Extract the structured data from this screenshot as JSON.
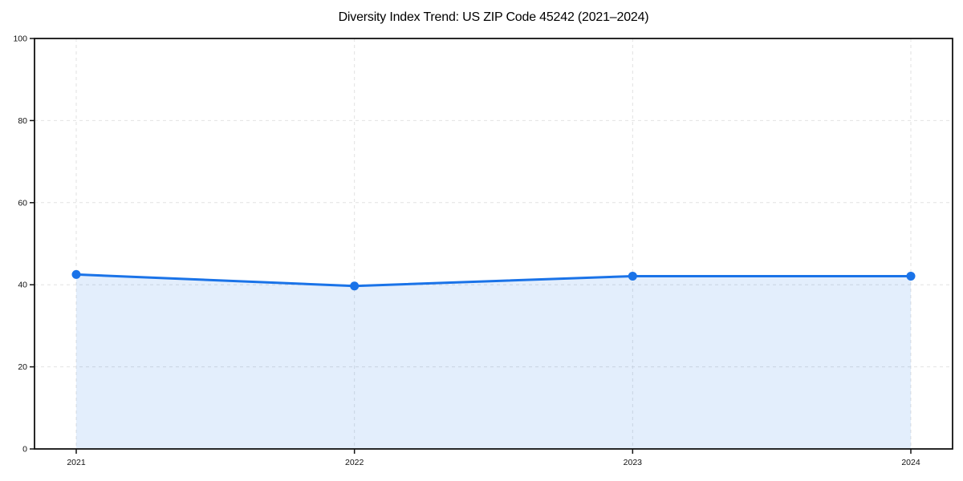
{
  "chart_data": {
    "type": "area",
    "title": "Diversity Index Trend: US ZIP Code 45242 (2021–2024)",
    "x": [
      2021,
      2022,
      2023,
      2024
    ],
    "xtick_labels": [
      "2021",
      "2022",
      "2023",
      "2024"
    ],
    "series": [
      {
        "name": "Diversity Index",
        "values": [
          42.5,
          39.7,
          42.1,
          42.1
        ]
      }
    ],
    "xlabel": "",
    "ylabel": "",
    "ylim": [
      0,
      100
    ],
    "yticks": [
      0,
      20,
      40,
      60,
      80,
      100
    ],
    "grid": true,
    "grid_style": "dashed",
    "legend": false,
    "colors": {
      "line": "#1a73e8",
      "marker": "#1a73e8",
      "fill": "rgba(26,115,232,0.12)",
      "grid": "#e2e2e2",
      "frame": "#111111",
      "tick_text": "#111111",
      "background": "#ffffff"
    }
  }
}
